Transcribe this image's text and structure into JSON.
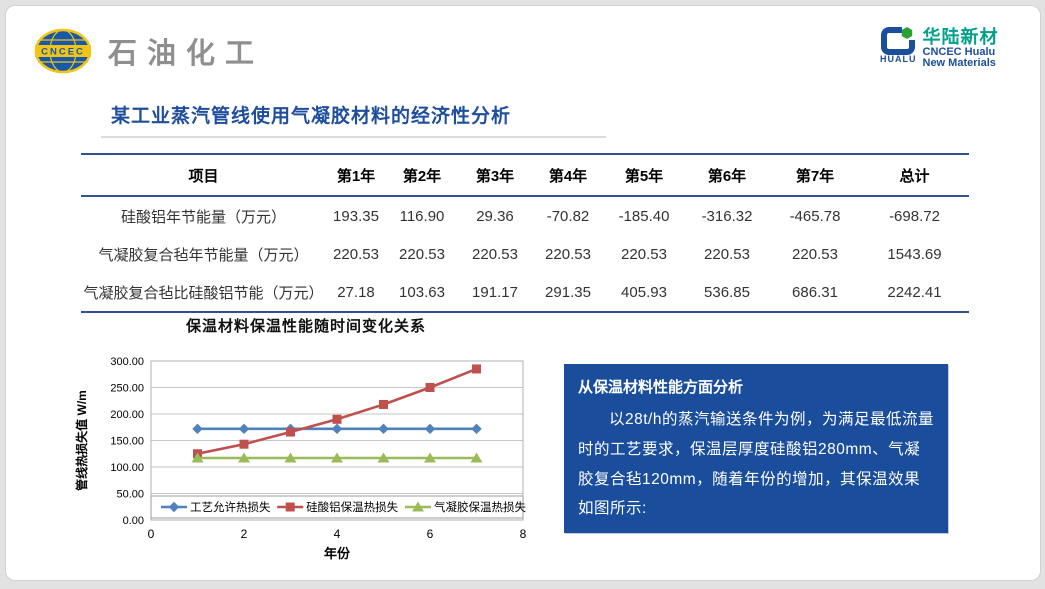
{
  "header": {
    "left_logo": {
      "emblem_text": "CNCEC",
      "brand": "石油化工"
    },
    "right_logo": {
      "icon_word": "HUALU",
      "name_cn": "华陆新材",
      "name_en_line1": "CNCEC Hualu",
      "name_en_line2": "New Materials"
    }
  },
  "title": "某工业蒸汽管线使用气凝胶材料的经济性分析",
  "table": {
    "columns": [
      "项目",
      "第1年",
      "第2年",
      "第3年",
      "第4年",
      "第5年",
      "第6年",
      "第7年",
      "总计"
    ],
    "rows": [
      {
        "label": "硅酸铝年节能量（万元）",
        "values": [
          "193.35",
          "116.90",
          "29.36",
          "-70.82",
          "-185.40",
          "-316.32",
          "-465.78",
          "-698.72"
        ]
      },
      {
        "label": "气凝胶复合毡年节能量（万元）",
        "values": [
          "220.53",
          "220.53",
          "220.53",
          "220.53",
          "220.53",
          "220.53",
          "220.53",
          "1543.69"
        ]
      },
      {
        "label": "气凝胶复合毡比硅酸铝节能（万元）",
        "values": [
          "27.18",
          "103.63",
          "191.17",
          "291.35",
          "405.93",
          "536.85",
          "686.31",
          "2242.41"
        ]
      }
    ],
    "negative_color": "#FF0000"
  },
  "chart_data": {
    "type": "line",
    "title": "保温材料保温性能随时间变化关系",
    "xlabel": "年份",
    "ylabel": "管线热损失值 W/m",
    "x": [
      1,
      2,
      3,
      4,
      5,
      6,
      7
    ],
    "series": [
      {
        "name": "工艺允许热损失",
        "values": [
          172,
          172,
          172,
          172,
          172,
          172,
          172
        ],
        "color": "#4F81BD",
        "marker": "diamond"
      },
      {
        "name": "硅酸铝保温热损失",
        "values": [
          125,
          143,
          166,
          190,
          218,
          250,
          285
        ],
        "color": "#C0504D",
        "marker": "square"
      },
      {
        "name": "气凝胶保温热损失",
        "values": [
          117,
          117,
          117,
          117,
          117,
          117,
          117
        ],
        "color": "#9BBB59",
        "marker": "triangle"
      }
    ],
    "xlim": [
      0,
      8
    ],
    "ylim": [
      0,
      300
    ],
    "xticks": [
      0,
      2,
      4,
      6,
      8
    ],
    "yticks": [
      "0.00",
      "50.00",
      "100.00",
      "150.00",
      "200.00",
      "250.00",
      "300.00"
    ],
    "grid": true,
    "legend_position": "bottom-inside"
  },
  "analysis_box": {
    "bg_color": "#1A4E9C",
    "heading": "从保温材料性能方面分析",
    "body": "以28t/h的蒸汽输送条件为例，为满足最低流量时的工艺要求，保温层厚度硅酸铝280mm、气凝胶复合毡120mm，随着年份的增加，其保温效果如图所示:"
  }
}
